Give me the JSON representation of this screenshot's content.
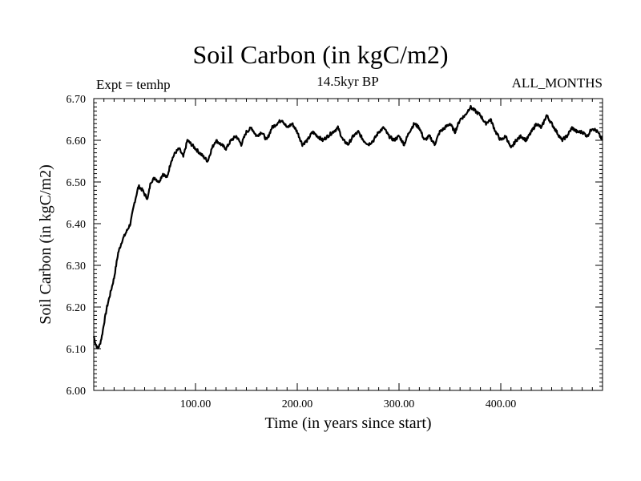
{
  "header": {
    "title": "Soil Carbon (in kgC/m2)",
    "subtitle": "14.5kyr BP",
    "experiment": "Expt = temhp",
    "months": "ALL_MONTHS"
  },
  "chart_data": {
    "type": "line",
    "title": "Soil Carbon (in kgC/m2)",
    "xlabel": "Time (in years since start)",
    "ylabel": "Soil Carbon (in kgC/m2)",
    "xlim": [
      0,
      500
    ],
    "ylim": [
      6.0,
      6.7
    ],
    "x_ticks": [
      100,
      200,
      300,
      400
    ],
    "x_tick_labels": [
      "100.00",
      "200.00",
      "300.00",
      "400.00"
    ],
    "y_ticks": [
      6.0,
      6.1,
      6.2,
      6.3,
      6.4,
      6.5,
      6.6,
      6.7
    ],
    "y_tick_labels": [
      "6.00",
      "6.10",
      "6.20",
      "6.30",
      "6.40",
      "6.50",
      "6.60",
      "6.70"
    ],
    "line_color": "#000000",
    "series": [
      {
        "name": "Soil Carbon",
        "x": [
          0,
          2,
          4,
          6,
          8,
          10,
          13,
          16,
          20,
          24,
          28,
          32,
          36,
          40,
          44,
          48,
          50,
          53,
          56,
          60,
          64,
          68,
          72,
          76,
          80,
          84,
          88,
          92,
          96,
          100,
          104,
          108,
          112,
          116,
          120,
          125,
          130,
          135,
          140,
          145,
          150,
          155,
          160,
          165,
          170,
          175,
          180,
          185,
          190,
          195,
          200,
          205,
          210,
          215,
          220,
          225,
          230,
          235,
          240,
          245,
          250,
          255,
          260,
          265,
          270,
          275,
          280,
          285,
          290,
          295,
          300,
          305,
          310,
          315,
          320,
          325,
          330,
          335,
          340,
          345,
          350,
          355,
          360,
          365,
          370,
          375,
          380,
          385,
          390,
          395,
          400,
          405,
          410,
          415,
          420,
          425,
          430,
          435,
          440,
          445,
          450,
          455,
          460,
          465,
          470,
          475,
          480,
          485,
          490,
          495,
          500
        ],
        "y": [
          6.13,
          6.11,
          6.1,
          6.11,
          6.13,
          6.16,
          6.2,
          6.23,
          6.27,
          6.33,
          6.36,
          6.38,
          6.4,
          6.45,
          6.49,
          6.48,
          6.47,
          6.46,
          6.5,
          6.51,
          6.5,
          6.52,
          6.51,
          6.55,
          6.57,
          6.58,
          6.56,
          6.6,
          6.59,
          6.58,
          6.57,
          6.56,
          6.55,
          6.58,
          6.6,
          6.59,
          6.58,
          6.6,
          6.61,
          6.59,
          6.62,
          6.63,
          6.61,
          6.62,
          6.6,
          6.63,
          6.64,
          6.65,
          6.63,
          6.64,
          6.62,
          6.59,
          6.6,
          6.62,
          6.61,
          6.6,
          6.61,
          6.62,
          6.63,
          6.6,
          6.59,
          6.61,
          6.62,
          6.6,
          6.59,
          6.6,
          6.62,
          6.63,
          6.61,
          6.6,
          6.61,
          6.59,
          6.62,
          6.64,
          6.63,
          6.6,
          6.61,
          6.59,
          6.62,
          6.63,
          6.64,
          6.62,
          6.65,
          6.66,
          6.68,
          6.67,
          6.66,
          6.64,
          6.65,
          6.62,
          6.6,
          6.61,
          6.58,
          6.6,
          6.61,
          6.6,
          6.62,
          6.64,
          6.63,
          6.66,
          6.64,
          6.62,
          6.6,
          6.61,
          6.63,
          6.62,
          6.62,
          6.61,
          6.63,
          6.62,
          6.6
        ]
      }
    ]
  }
}
